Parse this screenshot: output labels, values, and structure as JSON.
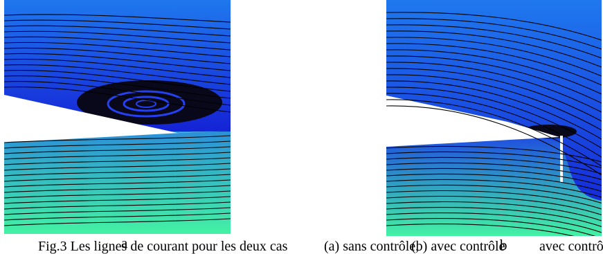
{
  "figure": {
    "panel_a_label": "a",
    "panel_b_label": "b",
    "caption_parts": [
      "Fig.3 Les lignes de courant pour les deux cas",
      "(a) sans contrôle,",
      "(b) avec contrôle",
      "avec contrôle"
    ]
  },
  "colors": {
    "flow_top": "#1c6df0",
    "flow_bottom": "#1a20d8",
    "lower_top": "#2fa0d0",
    "lower_bottom": "#40f0a8",
    "streamline": "#000000",
    "wing": "#ffffff"
  }
}
